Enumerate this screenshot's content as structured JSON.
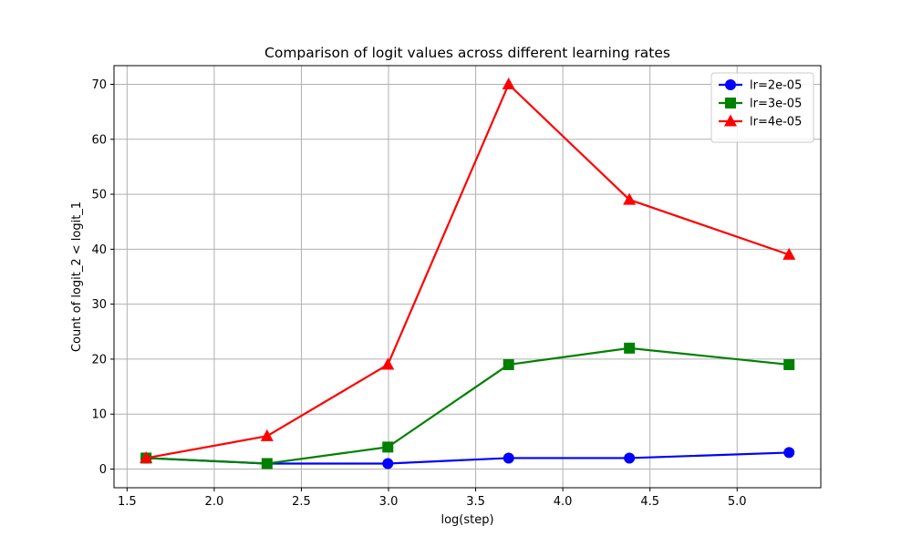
{
  "chart_data": {
    "type": "line",
    "title": "Comparison of logit values across different learning rates",
    "xlabel": "log(step)",
    "ylabel": "Count of logit_2 < logit_1",
    "x": [
      1.609,
      2.303,
      2.996,
      3.689,
      4.382,
      5.298
    ],
    "xlim": [
      1.425,
      5.48
    ],
    "ylim": [
      -3.4,
      73.4
    ],
    "xticks": [
      1.5,
      2.0,
      2.5,
      3.0,
      3.5,
      4.0,
      4.5,
      5.0
    ],
    "xtick_labels": [
      "1.5",
      "2.0",
      "2.5",
      "3.0",
      "3.5",
      "4.0",
      "4.5",
      "5.0"
    ],
    "yticks": [
      0,
      10,
      20,
      30,
      40,
      50,
      60,
      70
    ],
    "ytick_labels": [
      "0",
      "10",
      "20",
      "30",
      "40",
      "50",
      "60",
      "70"
    ],
    "grid": true,
    "legend_position": "top-right",
    "series": [
      {
        "name": "lr=2e-05",
        "color": "#0000ff",
        "marker": "circle",
        "values": [
          2,
          1,
          1,
          2,
          2,
          3
        ]
      },
      {
        "name": "lr=3e-05",
        "color": "#008000",
        "marker": "square",
        "values": [
          2,
          1,
          4,
          19,
          22,
          19
        ]
      },
      {
        "name": "lr=4e-05",
        "color": "#ff0000",
        "marker": "triangle",
        "values": [
          2,
          6,
          19,
          70,
          49,
          39
        ]
      }
    ]
  }
}
